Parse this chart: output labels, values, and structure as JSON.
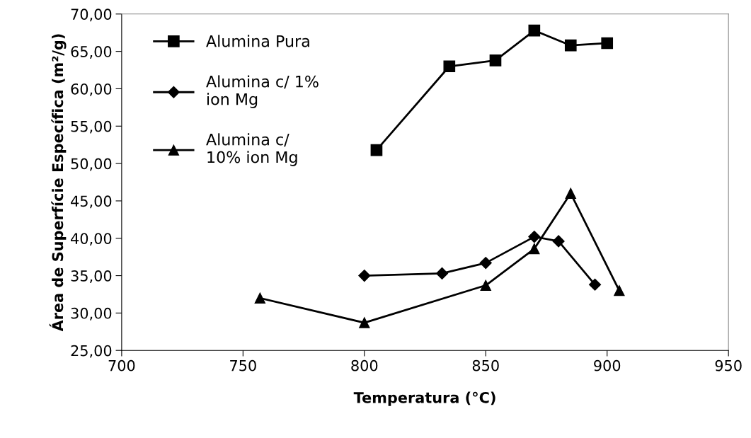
{
  "chart_data": {
    "type": "line",
    "xlabel": "Temperatura (°C)",
    "ylabel": "Área de Superfície Específica (m²/g)",
    "xlim": [
      700,
      950
    ],
    "xticks": [
      700,
      750,
      800,
      850,
      900,
      950
    ],
    "ylim": [
      25,
      70
    ],
    "yticks": [
      {
        "value": 25,
        "label": "25,00"
      },
      {
        "value": 30,
        "label": "30,00"
      },
      {
        "value": 35,
        "label": "35,00"
      },
      {
        "value": 40,
        "label": "40,00"
      },
      {
        "value": 45,
        "label": "45,00"
      },
      {
        "value": 50,
        "label": "50,00"
      },
      {
        "value": 55,
        "label": "55,00"
      },
      {
        "value": 60,
        "label": "60,00"
      },
      {
        "value": 65,
        "label": "65,00"
      },
      {
        "value": 70,
        "label": "70,00"
      }
    ],
    "grid": false,
    "legend": "top left",
    "series": [
      {
        "name": "Alumina Pura",
        "color": "#000000",
        "marker": "square",
        "x": [
          805,
          835,
          854,
          870,
          885,
          900
        ],
        "values": [
          51.8,
          63.0,
          63.8,
          67.8,
          65.8,
          66.1
        ]
      },
      {
        "name": "Alumina c/ 1%\nion Mg",
        "color": "#000000",
        "marker": "diamond",
        "x": [
          800,
          832,
          850,
          870,
          880,
          895
        ],
        "values": [
          35.0,
          35.3,
          36.7,
          40.2,
          39.6,
          33.8
        ]
      },
      {
        "name": "Alumina c/\n10% ion Mg",
        "color": "#000000",
        "marker": "triangle",
        "x": [
          757,
          800,
          850,
          870,
          885,
          905
        ],
        "values": [
          32.0,
          28.7,
          33.7,
          38.6,
          46.0,
          33.0
        ]
      }
    ]
  }
}
